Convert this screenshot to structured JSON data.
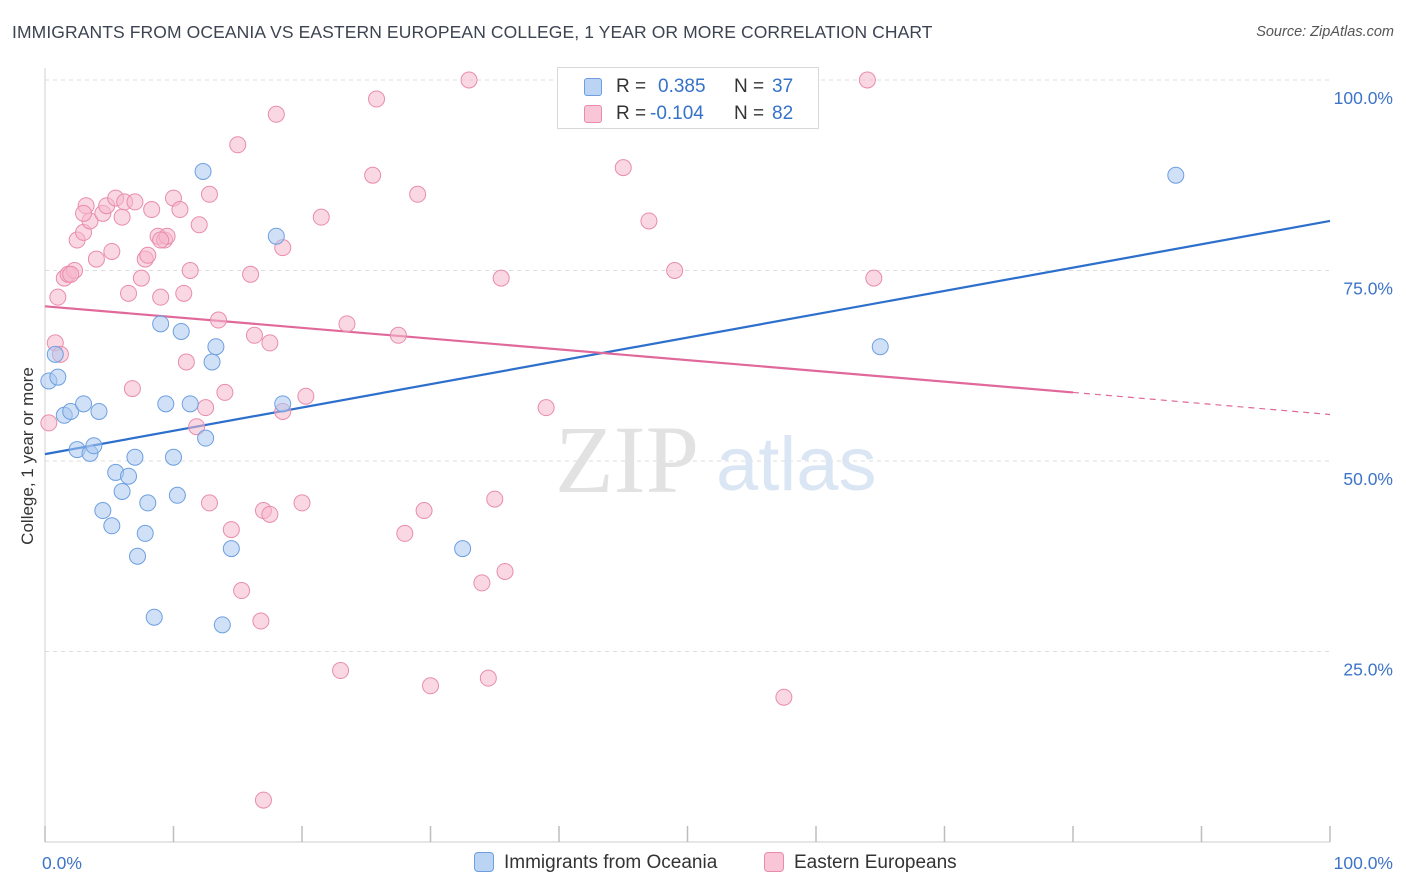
{
  "title": "IMMIGRANTS FROM OCEANIA VS EASTERN EUROPEAN COLLEGE, 1 YEAR OR MORE CORRELATION CHART",
  "source": "Source: ZipAtlas.com",
  "watermark": {
    "zip": "ZIP",
    "atlas": "atlas"
  },
  "colors": {
    "blue_fill": "#aac8f0",
    "blue_stroke": "#6d9fe0",
    "blue_line": "#2d6fcc",
    "pink_fill": "#f5b8cc",
    "pink_stroke": "#e98cab",
    "pink_line": "#e0689a",
    "axis_text": "#3d74c8",
    "grid": "#dddddd"
  },
  "legend": {
    "rows": [
      {
        "r_label": "R =",
        "r_value": "0.385",
        "n_label": "N =",
        "n_value": "37"
      },
      {
        "r_label": "R =",
        "r_value": "-0.104",
        "n_label": "N =",
        "n_value": "82"
      }
    ]
  },
  "bottom_legend": [
    "Immigrants from Oceania",
    "Eastern Europeans"
  ],
  "chart_data": {
    "type": "scatter",
    "title": "IMMIGRANTS FROM OCEANIA VS EASTERN EUROPEAN COLLEGE, 1 YEAR OR MORE CORRELATION CHART",
    "xlabel": "",
    "ylabel": "College, 1 year or more",
    "xlim": [
      0,
      100
    ],
    "ylim": [
      0,
      100
    ],
    "x_tick_labels": [
      "0.0%",
      "100.0%"
    ],
    "y_ticks": [
      25,
      50,
      75,
      100
    ],
    "y_tick_labels": [
      "25.0%",
      "50.0%",
      "75.0%",
      "100.0%"
    ],
    "grid": true,
    "series": [
      {
        "name": "Immigrants from Oceania",
        "R": 0.385,
        "N": 37,
        "trend": {
          "x": [
            0,
            100
          ],
          "y": [
            50.9,
            81.5
          ]
        },
        "points": [
          [
            0.3,
            60.5
          ],
          [
            1.0,
            61.0
          ],
          [
            1.5,
            56.0
          ],
          [
            2.0,
            56.5
          ],
          [
            2.5,
            51.5
          ],
          [
            3.0,
            57.5
          ],
          [
            3.5,
            51.0
          ],
          [
            3.8,
            52.0
          ],
          [
            4.2,
            56.5
          ],
          [
            4.5,
            43.5
          ],
          [
            5.2,
            41.5
          ],
          [
            5.5,
            48.5
          ],
          [
            6.0,
            46.0
          ],
          [
            6.5,
            48.0
          ],
          [
            7.0,
            50.5
          ],
          [
            7.2,
            37.5
          ],
          [
            7.8,
            40.5
          ],
          [
            8.0,
            44.5
          ],
          [
            8.5,
            29.5
          ],
          [
            9.0,
            68.0
          ],
          [
            9.4,
            57.5
          ],
          [
            10.0,
            50.5
          ],
          [
            10.3,
            45.5
          ],
          [
            10.6,
            67.0
          ],
          [
            11.3,
            57.5
          ],
          [
            12.3,
            88.0
          ],
          [
            12.5,
            53.0
          ],
          [
            13.0,
            63.0
          ],
          [
            13.3,
            65.0
          ],
          [
            14.5,
            38.5
          ],
          [
            13.8,
            28.5
          ],
          [
            18.0,
            79.5
          ],
          [
            18.5,
            57.5
          ],
          [
            32.5,
            38.5
          ],
          [
            65.0,
            65.0
          ],
          [
            88.0,
            87.5
          ],
          [
            0.8,
            64.0
          ]
        ]
      },
      {
        "name": "Eastern Europeans",
        "R": -0.104,
        "N": 82,
        "trend": {
          "x": [
            0,
            80,
            100
          ],
          "y": [
            70.3,
            59.0,
            56.1
          ]
        },
        "points": [
          [
            0.3,
            55.0
          ],
          [
            0.8,
            65.5
          ],
          [
            1.0,
            71.5
          ],
          [
            1.5,
            74.0
          ],
          [
            1.8,
            74.5
          ],
          [
            2.3,
            75.0
          ],
          [
            2.5,
            79.0
          ],
          [
            3.0,
            80.0
          ],
          [
            3.2,
            83.5
          ],
          [
            3.5,
            81.5
          ],
          [
            4.0,
            76.5
          ],
          [
            4.5,
            82.5
          ],
          [
            4.8,
            83.5
          ],
          [
            5.2,
            77.5
          ],
          [
            5.5,
            84.5
          ],
          [
            6.0,
            82.0
          ],
          [
            6.2,
            84.0
          ],
          [
            6.5,
            72.0
          ],
          [
            6.8,
            59.5
          ],
          [
            7.0,
            84.0
          ],
          [
            7.5,
            74.0
          ],
          [
            7.8,
            76.5
          ],
          [
            8.0,
            77.0
          ],
          [
            8.3,
            83.0
          ],
          [
            8.8,
            79.5
          ],
          [
            9.0,
            71.5
          ],
          [
            9.3,
            79.0
          ],
          [
            9.5,
            79.5
          ],
          [
            10.0,
            84.5
          ],
          [
            10.5,
            83.0
          ],
          [
            10.8,
            72.0
          ],
          [
            11.0,
            63.0
          ],
          [
            11.3,
            75.0
          ],
          [
            11.8,
            54.5
          ],
          [
            12.0,
            81.0
          ],
          [
            12.5,
            57.0
          ],
          [
            12.8,
            85.0
          ],
          [
            12.8,
            44.5
          ],
          [
            13.5,
            68.5
          ],
          [
            14.0,
            59.0
          ],
          [
            14.5,
            41.0
          ],
          [
            15.0,
            91.5
          ],
          [
            15.3,
            33.0
          ],
          [
            16.0,
            74.5
          ],
          [
            16.3,
            66.5
          ],
          [
            16.8,
            29.0
          ],
          [
            17.0,
            43.5
          ],
          [
            17.5,
            43.0
          ],
          [
            17.5,
            65.5
          ],
          [
            18.0,
            95.5
          ],
          [
            18.5,
            78.0
          ],
          [
            18.5,
            56.5
          ],
          [
            20.0,
            44.5
          ],
          [
            20.3,
            58.5
          ],
          [
            21.5,
            82.0
          ],
          [
            23.0,
            22.5
          ],
          [
            23.5,
            68.0
          ],
          [
            25.5,
            87.5
          ],
          [
            25.8,
            97.5
          ],
          [
            27.5,
            66.5
          ],
          [
            28.0,
            40.5
          ],
          [
            29.0,
            85.0
          ],
          [
            29.5,
            43.5
          ],
          [
            30.0,
            20.5
          ],
          [
            33.0,
            100.0
          ],
          [
            34.0,
            34.0
          ],
          [
            34.5,
            21.5
          ],
          [
            35.0,
            45.0
          ],
          [
            35.5,
            74.0
          ],
          [
            35.8,
            35.5
          ],
          [
            39.0,
            57.0
          ],
          [
            45.0,
            88.5
          ],
          [
            47.0,
            81.5
          ],
          [
            49.0,
            75.0
          ],
          [
            57.5,
            19.0
          ],
          [
            64.0,
            100.0
          ],
          [
            64.5,
            74.0
          ],
          [
            17.0,
            5.5
          ],
          [
            9.0,
            79.0
          ],
          [
            3.0,
            82.5
          ],
          [
            1.2,
            64.0
          ],
          [
            2.0,
            74.5
          ]
        ]
      }
    ]
  }
}
